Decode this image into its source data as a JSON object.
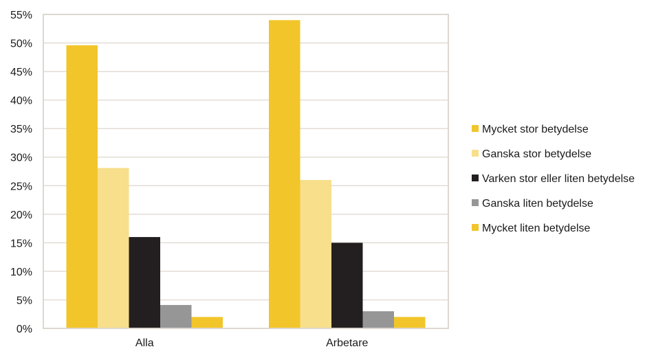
{
  "chart_data": {
    "type": "bar",
    "categories": [
      "Alla",
      "Arbetare"
    ],
    "series": [
      {
        "name": "Mycket stor betydelse",
        "values": [
          49.6,
          54.0
        ],
        "color": "#f2c52a"
      },
      {
        "name": "Ganska stor betydelse",
        "values": [
          28.1,
          26.0
        ],
        "color": "#f7df8c"
      },
      {
        "name": "Varken stor eller liten betydelse",
        "values": [
          16.0,
          15.0
        ],
        "color": "#231f20"
      },
      {
        "name": "Ganska liten betydelse",
        "values": [
          4.1,
          3.0
        ],
        "color": "#969696"
      },
      {
        "name": "Mycket liten betydelse",
        "values": [
          2.0,
          2.0
        ],
        "color": "#f2c52a"
      }
    ],
    "ylim": [
      0,
      55
    ],
    "yticks": [
      0,
      5,
      10,
      15,
      20,
      25,
      30,
      35,
      40,
      45,
      50,
      55
    ],
    "ytick_labels": [
      "0%",
      "5%",
      "10%",
      "15%",
      "20%",
      "25%",
      "30%",
      "35%",
      "40%",
      "45%",
      "50%",
      "55%"
    ],
    "grid": true,
    "legend_position": "right",
    "title": "",
    "xlabel": "",
    "ylabel": ""
  }
}
